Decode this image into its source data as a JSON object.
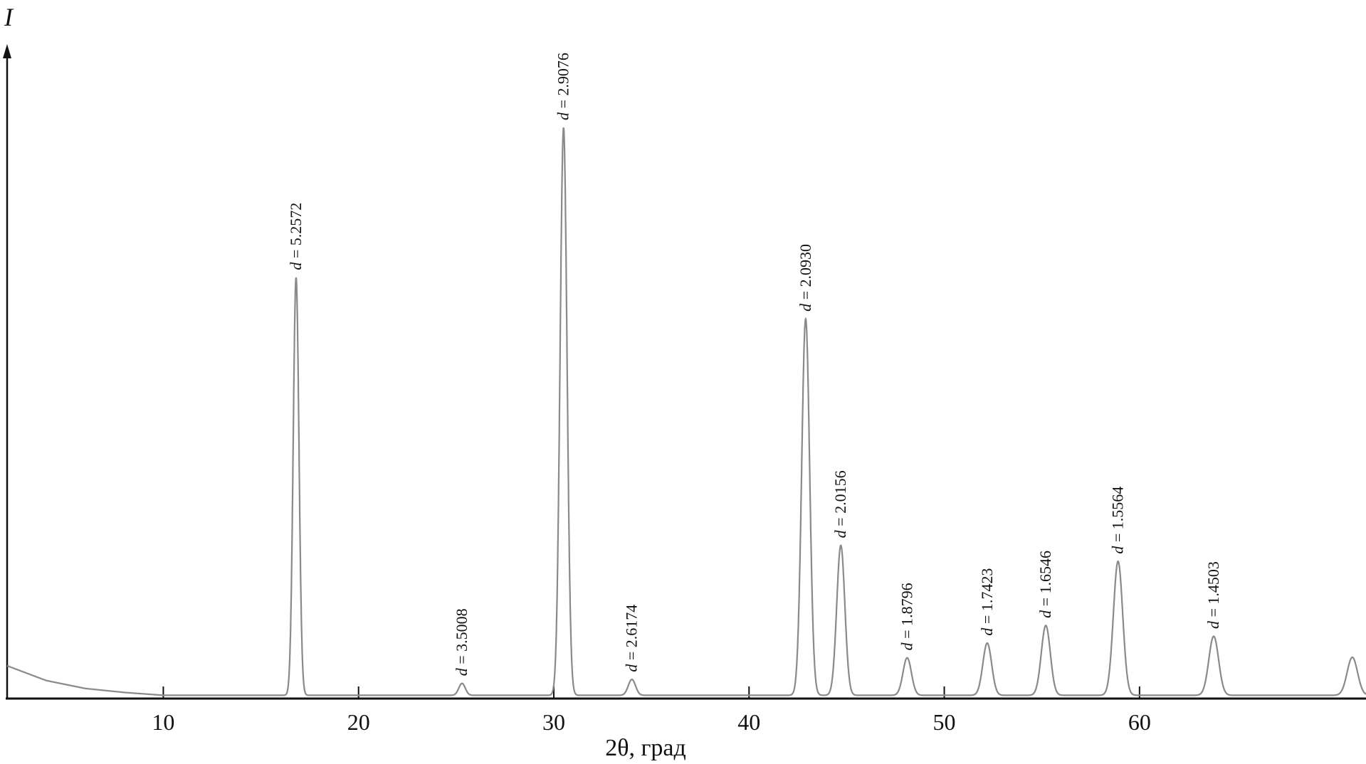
{
  "chart_data": {
    "type": "line",
    "xlabel": "2θ, град",
    "ylabel": "I",
    "xlim": [
      2,
      71.6
    ],
    "ylim": [
      0,
      100
    ],
    "x_ticks": [
      "10",
      "20",
      "30",
      "40",
      "50",
      "60"
    ],
    "grid": false,
    "legend": "none",
    "line_color": "#8a8a8a",
    "peaks": [
      {
        "x": 16.8,
        "y": 73.6,
        "label": "5.2572"
      },
      {
        "x": 25.3,
        "y": 2.1,
        "label": "3.5008"
      },
      {
        "x": 30.5,
        "y": 100,
        "label": "2.9076"
      },
      {
        "x": 34.0,
        "y": 2.8,
        "label": "2.6174"
      },
      {
        "x": 42.9,
        "y": 66.3,
        "label": "2.0930"
      },
      {
        "x": 44.7,
        "y": 26.4,
        "label": "2.0156"
      },
      {
        "x": 48.1,
        "y": 6.6,
        "label": "1.8796"
      },
      {
        "x": 52.2,
        "y": 9.2,
        "label": "1.7423"
      },
      {
        "x": 55.2,
        "y": 12.3,
        "label": "1.6546"
      },
      {
        "x": 58.9,
        "y": 23.6,
        "label": "1.5564"
      },
      {
        "x": 63.8,
        "y": 10.4,
        "label": "1.4503"
      },
      {
        "x": 70.9,
        "y": 6.7,
        "label": ""
      }
    ],
    "background": [
      [
        2,
        5.4
      ],
      [
        4,
        2.8
      ],
      [
        6,
        1.4
      ],
      [
        8,
        0.7
      ],
      [
        10,
        0.2
      ],
      [
        71.6,
        0.2
      ]
    ],
    "label_prefix": "d = "
  }
}
